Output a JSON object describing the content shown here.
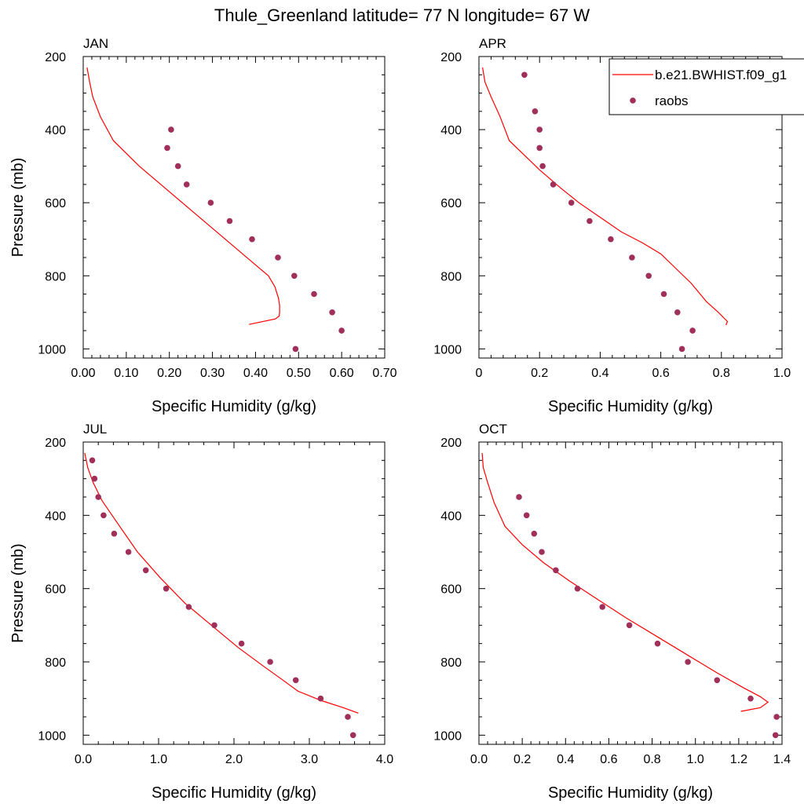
{
  "figure": {
    "title": "Thule_Greenland  latitude= 77 N longitude= 67 W"
  },
  "colors": {
    "model_line": "#ff0000",
    "obs_marker": "#a0305a",
    "axis": "#000000",
    "background": "#ffffff"
  },
  "legend": {
    "entries": [
      {
        "label": "b.e21.BWHIST.f09_g1",
        "type": "line",
        "color": "#ff0000"
      },
      {
        "label": "raobs",
        "type": "marker",
        "color": "#a0305a"
      }
    ],
    "placement": "top-right of APR panel, extending past the figure edge"
  },
  "chart_data": [
    {
      "type": "line",
      "panel_label": "JAN",
      "xlabel": "Specific Humidity (g/kg)",
      "ylabel": "Pressure (mb)",
      "xlim": [
        0,
        0.7
      ],
      "ylim": [
        1025,
        200
      ],
      "y_reversed": true,
      "xticks": [
        0.0,
        0.1,
        0.2,
        0.3,
        0.4,
        0.5,
        0.6,
        0.7
      ],
      "xtick_labels": [
        "0.00",
        "0.10",
        "0.20",
        "0.30",
        "0.40",
        "0.50",
        "0.60",
        "0.70"
      ],
      "yticks": [
        200,
        400,
        600,
        800,
        1000
      ],
      "ytick_labels": [
        "200",
        "400",
        "600",
        "800",
        "1000"
      ],
      "grid": false,
      "series": [
        {
          "name": "b.e21.BWHIST.f09_g1",
          "kind": "line",
          "x": [
            0.009,
            0.015,
            0.022,
            0.04,
            0.07,
            0.13,
            0.2,
            0.27,
            0.33,
            0.39,
            0.43,
            0.445,
            0.453,
            0.456,
            0.456,
            0.455,
            0.446,
            0.385
          ],
          "y": [
            230,
            270,
            310,
            365,
            430,
            500,
            570,
            640,
            700,
            760,
            800,
            830,
            860,
            880,
            900,
            910,
            918,
            933
          ]
        },
        {
          "name": "raobs",
          "kind": "scatter",
          "x": [
            0.204,
            0.195,
            0.22,
            0.24,
            0.296,
            0.34,
            0.392,
            0.452,
            0.49,
            0.536,
            0.578,
            0.6,
            0.493
          ],
          "y": [
            400,
            450,
            500,
            550,
            600,
            650,
            700,
            750,
            800,
            850,
            900,
            950,
            1000
          ]
        }
      ]
    },
    {
      "type": "line",
      "panel_label": "APR",
      "xlabel": "Specific Humidity (g/kg)",
      "ylabel": "",
      "xlim": [
        0,
        1.0
      ],
      "ylim": [
        1025,
        200
      ],
      "y_reversed": true,
      "xticks": [
        0.0,
        0.2,
        0.4,
        0.6,
        0.8,
        1.0
      ],
      "xtick_labels": [
        "0",
        "0.2",
        "0.4",
        "0.6",
        "0.8",
        "1.0"
      ],
      "yticks": [
        200,
        400,
        600,
        800,
        1000
      ],
      "ytick_labels": [
        "200",
        "400",
        "600",
        "800",
        "1000"
      ],
      "grid": false,
      "series": [
        {
          "name": "b.e21.BWHIST.f09_g1",
          "kind": "line",
          "x": [
            0.012,
            0.02,
            0.04,
            0.07,
            0.1,
            0.15,
            0.2,
            0.27,
            0.33,
            0.4,
            0.47,
            0.54,
            0.6,
            0.65,
            0.7,
            0.75,
            0.79,
            0.82,
            0.815
          ],
          "y": [
            230,
            270,
            310,
            365,
            430,
            470,
            510,
            560,
            600,
            640,
            680,
            710,
            740,
            780,
            820,
            870,
            900,
            925,
            935
          ]
        },
        {
          "name": "raobs",
          "kind": "scatter",
          "x": [
            0.15,
            0.185,
            0.2,
            0.2,
            0.21,
            0.245,
            0.305,
            0.365,
            0.435,
            0.505,
            0.56,
            0.61,
            0.655,
            0.705,
            0.67
          ],
          "y": [
            250,
            350,
            400,
            450,
            500,
            550,
            600,
            650,
            700,
            750,
            800,
            850,
            900,
            950,
            1000
          ]
        }
      ]
    },
    {
      "type": "line",
      "panel_label": "JUL",
      "xlabel": "Specific Humidity (g/kg)",
      "ylabel": "Pressure (mb)",
      "xlim": [
        0,
        4.0
      ],
      "ylim": [
        1025,
        200
      ],
      "y_reversed": true,
      "xticks": [
        0.0,
        1.0,
        2.0,
        3.0,
        4.0
      ],
      "xtick_labels": [
        "0.0",
        "1.0",
        "2.0",
        "3.0",
        "4.0"
      ],
      "yticks": [
        200,
        400,
        600,
        800,
        1000
      ],
      "ytick_labels": [
        "200",
        "400",
        "600",
        "800",
        "1000"
      ],
      "grid": false,
      "series": [
        {
          "name": "b.e21.BWHIST.f09_g1",
          "kind": "line",
          "x": [
            0.02,
            0.06,
            0.13,
            0.25,
            0.45,
            0.72,
            1.02,
            1.35,
            1.7,
            2.05,
            2.38,
            2.65,
            2.85,
            3.15,
            3.45,
            3.65
          ],
          "y": [
            230,
            270,
            310,
            360,
            420,
            500,
            570,
            640,
            700,
            760,
            810,
            850,
            880,
            905,
            925,
            940
          ]
        },
        {
          "name": "raobs",
          "kind": "scatter",
          "x": [
            0.12,
            0.15,
            0.2,
            0.27,
            0.41,
            0.6,
            0.83,
            1.1,
            1.4,
            1.74,
            2.1,
            2.48,
            2.82,
            3.15,
            3.51,
            3.58
          ],
          "y": [
            250,
            300,
            350,
            400,
            450,
            500,
            550,
            600,
            650,
            700,
            750,
            800,
            850,
            900,
            950,
            1000
          ]
        }
      ]
    },
    {
      "type": "line",
      "panel_label": "OCT",
      "xlabel": "Specific Humidity (g/kg)",
      "ylabel": "",
      "xlim": [
        0,
        1.4
      ],
      "ylim": [
        1025,
        200
      ],
      "y_reversed": true,
      "xticks": [
        0.0,
        0.2,
        0.4,
        0.6,
        0.8,
        1.0,
        1.2,
        1.4
      ],
      "xtick_labels": [
        "0.0",
        "0.2",
        "0.4",
        "0.6",
        "0.8",
        "1.0",
        "1.2",
        "1.4"
      ],
      "yticks": [
        200,
        400,
        600,
        800,
        1000
      ],
      "ytick_labels": [
        "200",
        "400",
        "600",
        "800",
        "1000"
      ],
      "grid": false,
      "series": [
        {
          "name": "b.e21.BWHIST.f09_g1",
          "kind": "line",
          "x": [
            0.015,
            0.02,
            0.04,
            0.07,
            0.12,
            0.2,
            0.3,
            0.42,
            0.55,
            0.68,
            0.82,
            0.96,
            1.1,
            1.22,
            1.3,
            1.335,
            1.3,
            1.21
          ],
          "y": [
            230,
            270,
            310,
            365,
            430,
            480,
            530,
            580,
            630,
            680,
            730,
            780,
            830,
            870,
            895,
            910,
            925,
            935
          ]
        },
        {
          "name": "raobs",
          "kind": "scatter",
          "x": [
            0.185,
            0.22,
            0.255,
            0.29,
            0.355,
            0.455,
            0.57,
            0.695,
            0.825,
            0.965,
            1.1,
            1.255,
            1.375,
            1.37
          ],
          "y": [
            350,
            400,
            450,
            500,
            550,
            600,
            650,
            700,
            750,
            800,
            850,
            900,
            950,
            1000
          ]
        }
      ]
    }
  ]
}
